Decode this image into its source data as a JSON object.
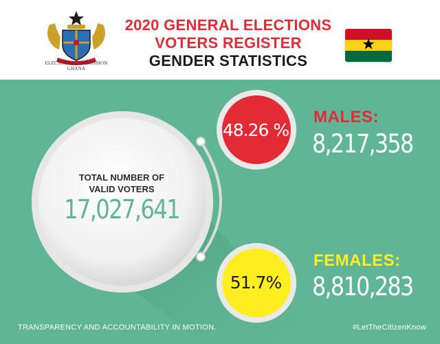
{
  "header": {
    "logo": {
      "icon": "electoral-commission-ghana-crest",
      "caption_line1": "ELECTORAL COMMISSION",
      "caption_line2": "GHANA"
    },
    "title_line1": "2020 GENERAL ELECTIONS",
    "title_line2": "VOTERS REGISTER",
    "title_line3": "GENDER STATISTICS",
    "flag_icon": "ghana-flag-icon"
  },
  "total": {
    "label_line1": "TOTAL NUMBER OF",
    "label_line2": "VALID VOTERS",
    "value": "17,027,641"
  },
  "males": {
    "label": "MALES:",
    "value": "8,217,358",
    "percent": "48.26 %"
  },
  "females": {
    "label": "FEMALES:",
    "value": "8,810,283",
    "percent": "51.7%"
  },
  "footer": {
    "left": "TRANSPARENCY AND ACCOUNTABILITY IN MOTION.",
    "right": "#LetTheCitizenKnow"
  },
  "colors": {
    "background_green": "#5fb595",
    "title_red": "#e32b36",
    "male_circle": "#e32b36",
    "female_circle": "#fcee21",
    "female_label": "#fcee21"
  }
}
